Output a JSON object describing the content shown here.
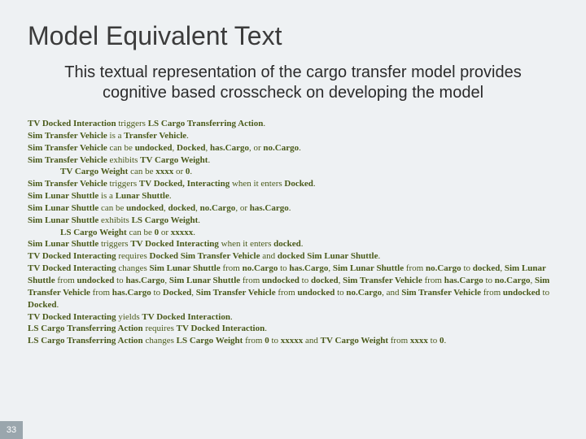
{
  "title": "Model Equivalent Text",
  "subtitle": "This textual representation of the cargo transfer model provides cognitive based crosscheck on developing the model",
  "page_number": "33",
  "colors": {
    "background": "#eef1f3",
    "title_color": "#3b3b3b",
    "subtitle_color": "#2b2b2b",
    "body_color": "#4a5a1a",
    "pagenum_bg": "#9aa6ad",
    "pagenum_fg": "#ffffff"
  },
  "typography": {
    "title_fontsize": 32,
    "subtitle_fontsize": 20,
    "body_fontsize": 11,
    "body_font": "Times New Roman"
  },
  "lines": [
    {
      "indent": false,
      "segments": [
        {
          "b": true,
          "t": "TV Docked Interaction "
        },
        {
          "b": false,
          "t": "triggers "
        },
        {
          "b": true,
          "t": "LS Cargo Transferring Action"
        },
        {
          "b": false,
          "t": "."
        }
      ]
    },
    {
      "indent": false,
      "segments": [
        {
          "b": true,
          "t": "Sim Transfer Vehicle "
        },
        {
          "b": false,
          "t": "is a "
        },
        {
          "b": true,
          "t": "Transfer Vehicle"
        },
        {
          "b": false,
          "t": "."
        }
      ]
    },
    {
      "indent": false,
      "segments": [
        {
          "b": true,
          "t": "Sim Transfer Vehicle "
        },
        {
          "b": false,
          "t": "can be "
        },
        {
          "b": true,
          "t": "undocked"
        },
        {
          "b": false,
          "t": ", "
        },
        {
          "b": true,
          "t": "Docked"
        },
        {
          "b": false,
          "t": ", "
        },
        {
          "b": true,
          "t": "has.Cargo"
        },
        {
          "b": false,
          "t": ", or "
        },
        {
          "b": true,
          "t": "no.Cargo"
        },
        {
          "b": false,
          "t": "."
        }
      ]
    },
    {
      "indent": false,
      "segments": [
        {
          "b": true,
          "t": "Sim Transfer Vehicle "
        },
        {
          "b": false,
          "t": "exhibits "
        },
        {
          "b": true,
          "t": "TV Cargo Weight"
        },
        {
          "b": false,
          "t": "."
        }
      ]
    },
    {
      "indent": true,
      "segments": [
        {
          "b": true,
          "t": "TV Cargo Weight "
        },
        {
          "b": false,
          "t": "can be "
        },
        {
          "b": true,
          "t": "xxxx "
        },
        {
          "b": false,
          "t": "or "
        },
        {
          "b": true,
          "t": "0"
        },
        {
          "b": false,
          "t": "."
        }
      ]
    },
    {
      "indent": false,
      "segments": [
        {
          "b": true,
          "t": "Sim Transfer Vehicle "
        },
        {
          "b": false,
          "t": "triggers "
        },
        {
          "b": true,
          "t": "TV Docked, Interacting "
        },
        {
          "b": false,
          "t": "when it enters "
        },
        {
          "b": true,
          "t": "Docked"
        },
        {
          "b": false,
          "t": "."
        }
      ]
    },
    {
      "indent": false,
      "segments": [
        {
          "b": true,
          "t": "Sim Lunar Shuttle "
        },
        {
          "b": false,
          "t": "is a "
        },
        {
          "b": true,
          "t": "Lunar Shuttle"
        },
        {
          "b": false,
          "t": "."
        }
      ]
    },
    {
      "indent": false,
      "segments": [
        {
          "b": true,
          "t": "Sim Lunar Shuttle "
        },
        {
          "b": false,
          "t": "can be "
        },
        {
          "b": true,
          "t": "undocked"
        },
        {
          "b": false,
          "t": ", "
        },
        {
          "b": true,
          "t": "docked"
        },
        {
          "b": false,
          "t": ", "
        },
        {
          "b": true,
          "t": "no.Cargo"
        },
        {
          "b": false,
          "t": ", or "
        },
        {
          "b": true,
          "t": "has.Cargo"
        },
        {
          "b": false,
          "t": "."
        }
      ]
    },
    {
      "indent": false,
      "segments": [
        {
          "b": true,
          "t": "Sim Lunar Shuttle "
        },
        {
          "b": false,
          "t": "exhibits "
        },
        {
          "b": true,
          "t": "LS Cargo Weight"
        },
        {
          "b": false,
          "t": "."
        }
      ]
    },
    {
      "indent": true,
      "segments": [
        {
          "b": true,
          "t": "LS Cargo Weight "
        },
        {
          "b": false,
          "t": "can be "
        },
        {
          "b": true,
          "t": "0 "
        },
        {
          "b": false,
          "t": "or "
        },
        {
          "b": true,
          "t": "xxxxx"
        },
        {
          "b": false,
          "t": "."
        }
      ]
    },
    {
      "indent": false,
      "segments": [
        {
          "b": true,
          "t": "Sim Lunar Shuttle "
        },
        {
          "b": false,
          "t": "triggers "
        },
        {
          "b": true,
          "t": "TV Docked Interacting "
        },
        {
          "b": false,
          "t": "when it enters "
        },
        {
          "b": true,
          "t": "docked"
        },
        {
          "b": false,
          "t": "."
        }
      ]
    },
    {
      "indent": false,
      "segments": [
        {
          "b": true,
          "t": "TV Docked Interacting "
        },
        {
          "b": false,
          "t": "requires "
        },
        {
          "b": true,
          "t": "Docked Sim Transfer Vehicle "
        },
        {
          "b": false,
          "t": "and "
        },
        {
          "b": true,
          "t": "docked Sim Lunar Shuttle"
        },
        {
          "b": false,
          "t": "."
        }
      ]
    },
    {
      "indent": false,
      "segments": [
        {
          "b": true,
          "t": "TV Docked Interacting "
        },
        {
          "b": false,
          "t": "changes "
        },
        {
          "b": true,
          "t": "Sim Lunar Shuttle "
        },
        {
          "b": false,
          "t": "from "
        },
        {
          "b": true,
          "t": "no.Cargo "
        },
        {
          "b": false,
          "t": "to "
        },
        {
          "b": true,
          "t": "has.Cargo"
        },
        {
          "b": false,
          "t": ", "
        },
        {
          "b": true,
          "t": "Sim Lunar Shuttle "
        },
        {
          "b": false,
          "t": "from "
        },
        {
          "b": true,
          "t": "no.Cargo "
        },
        {
          "b": false,
          "t": "to "
        },
        {
          "b": true,
          "t": "docked"
        },
        {
          "b": false,
          "t": ", "
        },
        {
          "b": true,
          "t": "Sim Lunar Shuttle "
        },
        {
          "b": false,
          "t": "from "
        },
        {
          "b": true,
          "t": "undocked "
        },
        {
          "b": false,
          "t": "to "
        },
        {
          "b": true,
          "t": "has.Cargo"
        },
        {
          "b": false,
          "t": ", "
        },
        {
          "b": true,
          "t": "Sim Lunar Shuttle "
        },
        {
          "b": false,
          "t": "from "
        },
        {
          "b": true,
          "t": "undocked "
        },
        {
          "b": false,
          "t": "to "
        },
        {
          "b": true,
          "t": "docked"
        },
        {
          "b": false,
          "t": ", "
        },
        {
          "b": true,
          "t": "Sim Transfer Vehicle "
        },
        {
          "b": false,
          "t": "from "
        },
        {
          "b": true,
          "t": "has.Cargo "
        },
        {
          "b": false,
          "t": "to "
        },
        {
          "b": true,
          "t": "no.Cargo"
        },
        {
          "b": false,
          "t": ", "
        },
        {
          "b": true,
          "t": "Sim Transfer Vehicle "
        },
        {
          "b": false,
          "t": "from "
        },
        {
          "b": true,
          "t": "has.Cargo "
        },
        {
          "b": false,
          "t": "to "
        },
        {
          "b": true,
          "t": "Docked"
        },
        {
          "b": false,
          "t": ", "
        },
        {
          "b": true,
          "t": "Sim Transfer Vehicle "
        },
        {
          "b": false,
          "t": "from "
        },
        {
          "b": true,
          "t": "undocked "
        },
        {
          "b": false,
          "t": "to "
        },
        {
          "b": true,
          "t": "no.Cargo"
        },
        {
          "b": false,
          "t": ", and "
        },
        {
          "b": true,
          "t": "Sim Transfer Vehicle "
        },
        {
          "b": false,
          "t": "from "
        },
        {
          "b": true,
          "t": "undocked "
        },
        {
          "b": false,
          "t": "to "
        },
        {
          "b": true,
          "t": "Docked"
        },
        {
          "b": false,
          "t": "."
        }
      ]
    },
    {
      "indent": false,
      "segments": [
        {
          "b": true,
          "t": "TV Docked Interacting "
        },
        {
          "b": false,
          "t": "yields "
        },
        {
          "b": true,
          "t": "TV Docked Interaction"
        },
        {
          "b": false,
          "t": "."
        }
      ]
    },
    {
      "indent": false,
      "segments": [
        {
          "b": true,
          "t": "LS Cargo Transferring Action "
        },
        {
          "b": false,
          "t": "requires "
        },
        {
          "b": true,
          "t": "TV Docked Interaction"
        },
        {
          "b": false,
          "t": "."
        }
      ]
    },
    {
      "indent": false,
      "segments": [
        {
          "b": true,
          "t": "LS Cargo Transferring Action "
        },
        {
          "b": false,
          "t": "changes "
        },
        {
          "b": true,
          "t": "LS Cargo Weight "
        },
        {
          "b": false,
          "t": "from "
        },
        {
          "b": true,
          "t": "0 "
        },
        {
          "b": false,
          "t": "to "
        },
        {
          "b": true,
          "t": "xxxxx "
        },
        {
          "b": false,
          "t": "and "
        },
        {
          "b": true,
          "t": "TV Cargo Weight "
        },
        {
          "b": false,
          "t": "from "
        },
        {
          "b": true,
          "t": "xxxx "
        },
        {
          "b": false,
          "t": "to "
        },
        {
          "b": true,
          "t": "0"
        },
        {
          "b": false,
          "t": "."
        }
      ]
    }
  ]
}
